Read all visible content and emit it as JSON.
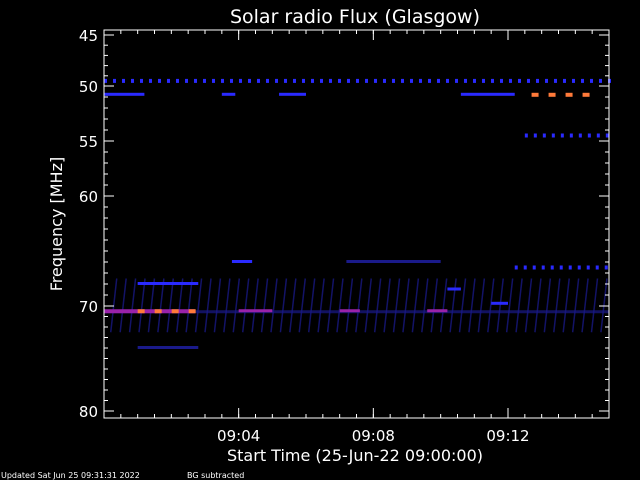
{
  "chart_data": {
    "type": "heatmap",
    "title": "Solar radio Flux (Glasgow)",
    "xlabel": "Start Time (25-Jun-22 09:00:00)",
    "ylabel": "Frequency [MHz]",
    "x_range_minutes": [
      0,
      15
    ],
    "y_tick_labels": [
      "45",
      "50",
      "55",
      "60",
      "70",
      "80"
    ],
    "x_tick_labels": [
      "09:04",
      "09:08",
      "09:12"
    ],
    "x_tick_minutes": [
      4,
      8,
      12
    ],
    "colors": {
      "background": "#000000",
      "axes": "#ffffff",
      "low": "#1a1a8a",
      "mid": "#2a2aff",
      "high": "#9a22aa",
      "burst": "#ff7a3a"
    },
    "features": [
      {
        "name": "persistent-band",
        "freq_label": "49.5",
        "start_min": 0,
        "end_min": 15,
        "level": "mid"
      },
      {
        "name": "interference-band",
        "freq_label": "70.5",
        "start_min": 0,
        "end_min": 15,
        "level": "low"
      },
      {
        "name": "strong-emission",
        "freq_label": "70.5",
        "start_min": 0,
        "end_min": 2.7,
        "level": "high"
      },
      {
        "name": "burst-dots-low",
        "freq_label": "70.5",
        "start_min": 1.0,
        "end_min": 2.6,
        "level": "burst"
      },
      {
        "name": "burst-dots-high",
        "freq_label": "50.8",
        "start_min": 12.7,
        "end_min": 14.7,
        "level": "burst"
      },
      {
        "name": "band-54",
        "freq_label": "54.5",
        "start_min": 12.5,
        "end_min": 15,
        "level": "mid"
      },
      {
        "name": "band-66",
        "freq_label": "66.5",
        "start_min": 12.2,
        "end_min": 15,
        "level": "mid"
      }
    ]
  },
  "footer": {
    "updated": "Updated Sat Jun 25 09:31:31 2022",
    "note": "BG subtracted"
  }
}
